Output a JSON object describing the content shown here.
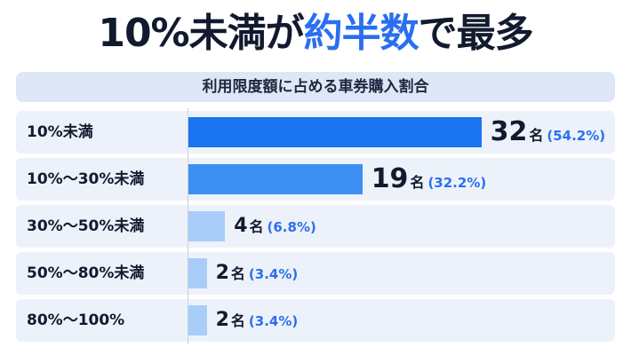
{
  "title": {
    "before": "10%未満が",
    "accent": "約半数",
    "after": "で最多"
  },
  "subtitle": "利用限度額に占める車券購入割合",
  "colors": {
    "accent": "#2a6ff0",
    "bar_primary": "#1a73ef",
    "bar_secondary": "#3c8ef2",
    "bar_light": "#a8cdf8"
  },
  "chart_data": {
    "type": "bar",
    "orientation": "horizontal",
    "title": "10%未満が約半数で最多",
    "subtitle": "利用限度額に占める車券購入割合",
    "categories": [
      "10%未満",
      "10%〜30%未満",
      "30%〜50%未満",
      "50%〜80%未満",
      "80%〜100%"
    ],
    "values": [
      32,
      19,
      4,
      2,
      2
    ],
    "unit": "名",
    "percent_labels": [
      "(54.2%)",
      "(32.2%)",
      "(6.8%)",
      "(3.4%)",
      "(3.4%)"
    ],
    "grid": false,
    "legend": "none"
  }
}
